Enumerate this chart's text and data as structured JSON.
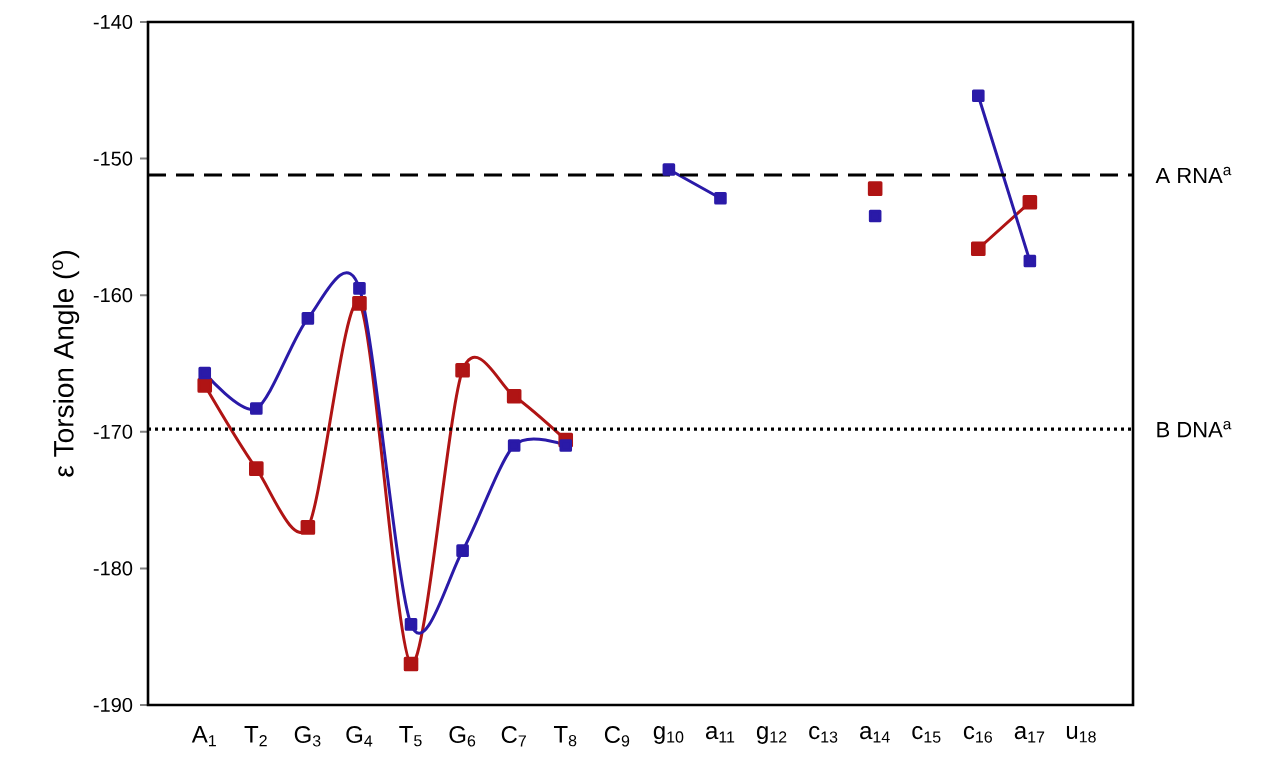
{
  "chart_data": {
    "type": "line",
    "ylabel": "ε Torsion Angle ($^{o}$)",
    "categories": [
      "A$_{1}$",
      "T$_{2}$",
      "G$_{3}$",
      "G$_{4}$",
      "T$_{5}$",
      "G$_{6}$",
      "C$_{7}$",
      "T$_{8}$",
      "C$_{9}$",
      "g$_{10}$",
      "a$_{11}$",
      "g$_{12}$",
      "c$_{13}$",
      "a$_{14}$",
      "c$_{15}$",
      "c$_{16}$",
      "a$_{17}$",
      "u$_{18}$"
    ],
    "series": [
      {
        "color": "#b01414",
        "values": [
          -166.6,
          -172.7,
          -177.0,
          -160.6,
          -187.0,
          -165.5,
          -167.4,
          -170.6,
          null,
          null,
          null,
          null,
          null,
          -152.2,
          null,
          -156.6,
          -153.2,
          null
        ]
      },
      {
        "color": "#2a1aa8",
        "values": [
          -165.7,
          -168.3,
          -161.7,
          -159.5,
          -184.1,
          -178.7,
          -171.0,
          -171.0,
          null,
          -150.8,
          -152.9,
          null,
          null,
          -154.2,
          null,
          -145.4,
          -157.5,
          null
        ]
      }
    ],
    "marker": "square",
    "ylim": [
      -190,
      -140
    ],
    "yticks": [
      -190,
      -180,
      -170,
      -160,
      -150,
      -140
    ],
    "ref_lines": [
      {
        "axis": "y",
        "value": -151.2,
        "label": "A RNA$^{a}$",
        "line_style": "dashed",
        "color": "#000000"
      },
      {
        "axis": "y",
        "value": -169.8,
        "label": "B DNA$^{a}$",
        "line_style": "dotted",
        "color": "#000000"
      }
    ]
  }
}
